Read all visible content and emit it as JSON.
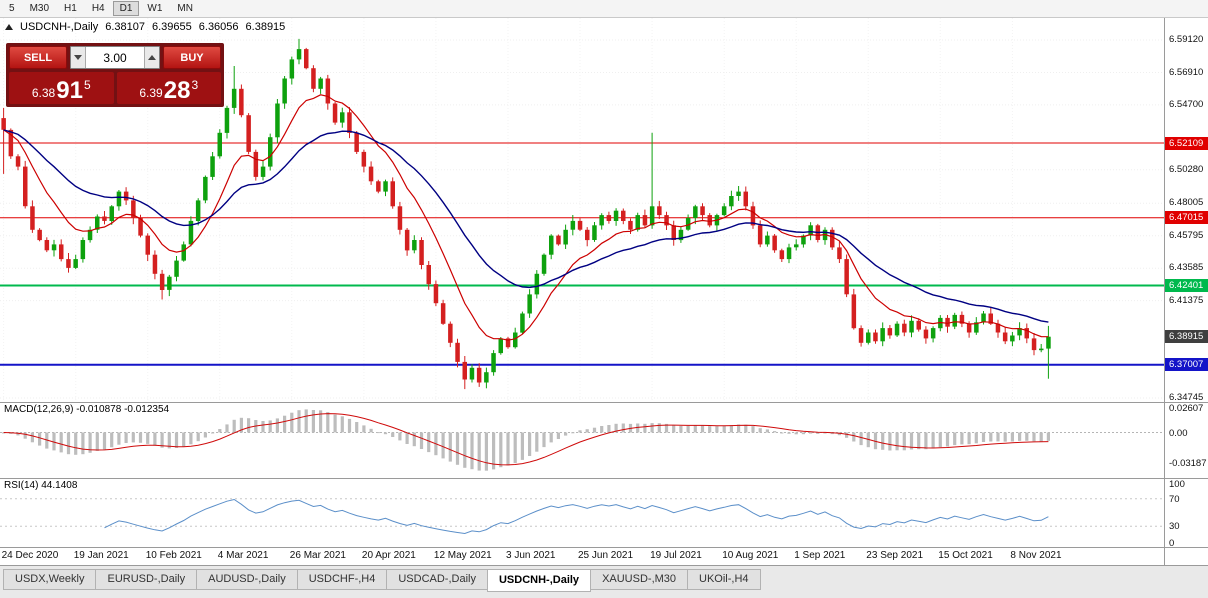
{
  "toolbar": {
    "buttons": [
      "5",
      "M30",
      "H1",
      "H4",
      "D1",
      "W1",
      "MN"
    ],
    "active": "D1"
  },
  "chart_header": {
    "symbol": "USDCNH-,Daily",
    "open": "6.38107",
    "high": "6.39655",
    "low": "6.36056",
    "close": "6.38915"
  },
  "trade_panel": {
    "sell_label": "SELL",
    "buy_label": "BUY",
    "volume": "3.00",
    "sell_price": {
      "prefix": "6.38",
      "big": "91",
      "sup": "5"
    },
    "buy_price": {
      "prefix": "6.39",
      "big": "28",
      "sup": "3"
    }
  },
  "price_axis": {
    "grid_labels": [
      {
        "text": "6.59120",
        "price": 6.5912
      },
      {
        "text": "6.56910",
        "price": 6.5691
      },
      {
        "text": "6.54700",
        "price": 6.547
      },
      {
        "text": "6.50280",
        "price": 6.5028
      },
      {
        "text": "6.48005",
        "price": 6.48005
      },
      {
        "text": "6.45795",
        "price": 6.45795
      },
      {
        "text": "6.43585",
        "price": 6.43585
      },
      {
        "text": "6.41375",
        "price": 6.41375
      },
      {
        "text": "6.34745",
        "price": 6.34745
      }
    ],
    "line_labels": [
      {
        "text": "6.52109",
        "price": 6.52109,
        "bg": "#e00000"
      },
      {
        "text": "6.47015",
        "price": 6.47015,
        "bg": "#e00000"
      },
      {
        "text": "6.42401",
        "price": 6.42401,
        "bg": "#00b94d"
      },
      {
        "text": "6.38915",
        "price": 6.38915,
        "bg": "#3f3f3f"
      },
      {
        "text": "6.37007",
        "price": 6.37007,
        "bg": "#1414c8"
      }
    ]
  },
  "hlines": [
    {
      "price": 6.52109,
      "color": "#e00000",
      "w": 1
    },
    {
      "price": 6.47015,
      "color": "#e00000",
      "w": 1
    },
    {
      "price": 6.42401,
      "color": "#00b94d",
      "w": 2
    },
    {
      "price": 6.37007,
      "color": "#1414c8",
      "w": 2
    }
  ],
  "chart_data": {
    "type": "candlestick",
    "title": "USDCNH-,Daily",
    "ohlc_last": [
      6.38107,
      6.39655,
      6.36056,
      6.38915
    ],
    "price_range": [
      6.3447,
      6.6062
    ],
    "first_open": 6.538,
    "closes": [
      6.53,
      6.512,
      6.505,
      6.478,
      6.462,
      6.455,
      6.448,
      6.452,
      6.442,
      6.436,
      6.442,
      6.455,
      6.462,
      6.471,
      6.468,
      6.478,
      6.488,
      6.482,
      6.47,
      6.458,
      6.445,
      6.432,
      6.421,
      6.43,
      6.441,
      6.452,
      6.468,
      6.482,
      6.498,
      6.512,
      6.528,
      6.545,
      6.558,
      6.54,
      6.515,
      6.498,
      6.505,
      6.525,
      6.548,
      6.565,
      6.578,
      6.585,
      6.572,
      6.558,
      6.565,
      6.548,
      6.535,
      6.542,
      6.528,
      6.515,
      6.505,
      6.495,
      6.488,
      6.495,
      6.478,
      6.462,
      6.448,
      6.455,
      6.438,
      6.425,
      6.412,
      6.398,
      6.385,
      6.372,
      6.36,
      6.368,
      6.358,
      6.365,
      6.378,
      6.388,
      6.382,
      6.392,
      6.405,
      6.418,
      6.432,
      6.445,
      6.458,
      6.452,
      6.462,
      6.468,
      6.462,
      6.455,
      6.465,
      6.472,
      6.468,
      6.475,
      6.468,
      6.462,
      6.472,
      6.465,
      6.478,
      6.472,
      6.465,
      6.455,
      6.462,
      6.47,
      6.478,
      6.472,
      6.465,
      6.472,
      6.478,
      6.485,
      6.488,
      6.478,
      6.465,
      6.452,
      6.458,
      6.448,
      6.442,
      6.45,
      6.452,
      6.458,
      6.465,
      6.455,
      6.462,
      6.45,
      6.442,
      6.418,
      6.395,
      6.385,
      6.392,
      6.386,
      6.395,
      6.39,
      6.398,
      6.392,
      6.4,
      6.394,
      6.388,
      6.395,
      6.402,
      6.396,
      6.404,
      6.398,
      6.392,
      6.399,
      6.405,
      6.398,
      6.392,
      6.386,
      6.39,
      6.395,
      6.388,
      6.38,
      6.38107,
      6.38915
    ],
    "wick_overrides": {
      "0": {
        "high": 6.545,
        "low": 6.5
      },
      "22": {
        "low": 6.4145
      },
      "32": {
        "high": 6.5735
      },
      "41": {
        "high": 6.592
      },
      "64": {
        "low": 6.3535
      },
      "66": {
        "low": 6.355
      },
      "90": {
        "high": 6.528
      },
      "145": {
        "high": 6.39655,
        "low": 6.36056
      }
    },
    "x_labels": [
      "24 Dec 2020",
      "19 Jan 2021",
      "10 Feb 2021",
      "4 Mar 2021",
      "26 Mar 2021",
      "20 Apr 2021",
      "12 May 2021",
      "3 Jun 2021",
      "25 Jun 2021",
      "19 Jul 2021",
      "10 Aug 2021",
      "1 Sep 2021",
      "23 Sep 2021",
      "15 Oct 2021",
      "8 Nov 2021"
    ],
    "labels_every": 10,
    "up_color": "#0ea10e",
    "down_color": "#d42020",
    "ma_fast": {
      "period": 10,
      "color": "#cc0000"
    },
    "ma_slow": {
      "period": 26,
      "color": "#000082"
    }
  },
  "macd_panel": {
    "label": "MACD(12,26,9) -0.010878 -0.012354",
    "fast": 12,
    "slow": 26,
    "signal": 9,
    "value_main": "-0.010878",
    "value_signal": "-0.012354",
    "axis_labels": [
      {
        "text": "0.02607",
        "value": 0.02607
      },
      {
        "text": "0.00",
        "value": 0
      },
      {
        "text": "-0.03187",
        "value": -0.03187
      }
    ],
    "hist_color": "#bdbdbd",
    "signal_color": "#cf0a0a"
  },
  "rsi_panel": {
    "label": "RSI(14) 44.1408",
    "period": 14,
    "value": "44.1408",
    "levels": [
      70,
      30
    ],
    "axis_labels": [
      {
        "text": "100",
        "value": 100
      },
      {
        "text": "70",
        "value": 70
      },
      {
        "text": "30",
        "value": 30
      },
      {
        "text": "0",
        "value": 0
      }
    ],
    "line_color": "#5b8fc9",
    "range": [
      0,
      100
    ]
  },
  "tabs": {
    "items": [
      {
        "label": "USDX,Weekly",
        "active": false
      },
      {
        "label": "EURUSD-,Daily",
        "active": false
      },
      {
        "label": "AUDUSD-,Daily",
        "active": false
      },
      {
        "label": "USDCHF-,H4",
        "active": false
      },
      {
        "label": "USDCAD-,Daily",
        "active": false
      },
      {
        "label": "USDCNH-,Daily",
        "active": true
      },
      {
        "label": "XAUUSD-,M30",
        "active": false
      },
      {
        "label": "UKOil-,H4",
        "active": false
      }
    ]
  }
}
